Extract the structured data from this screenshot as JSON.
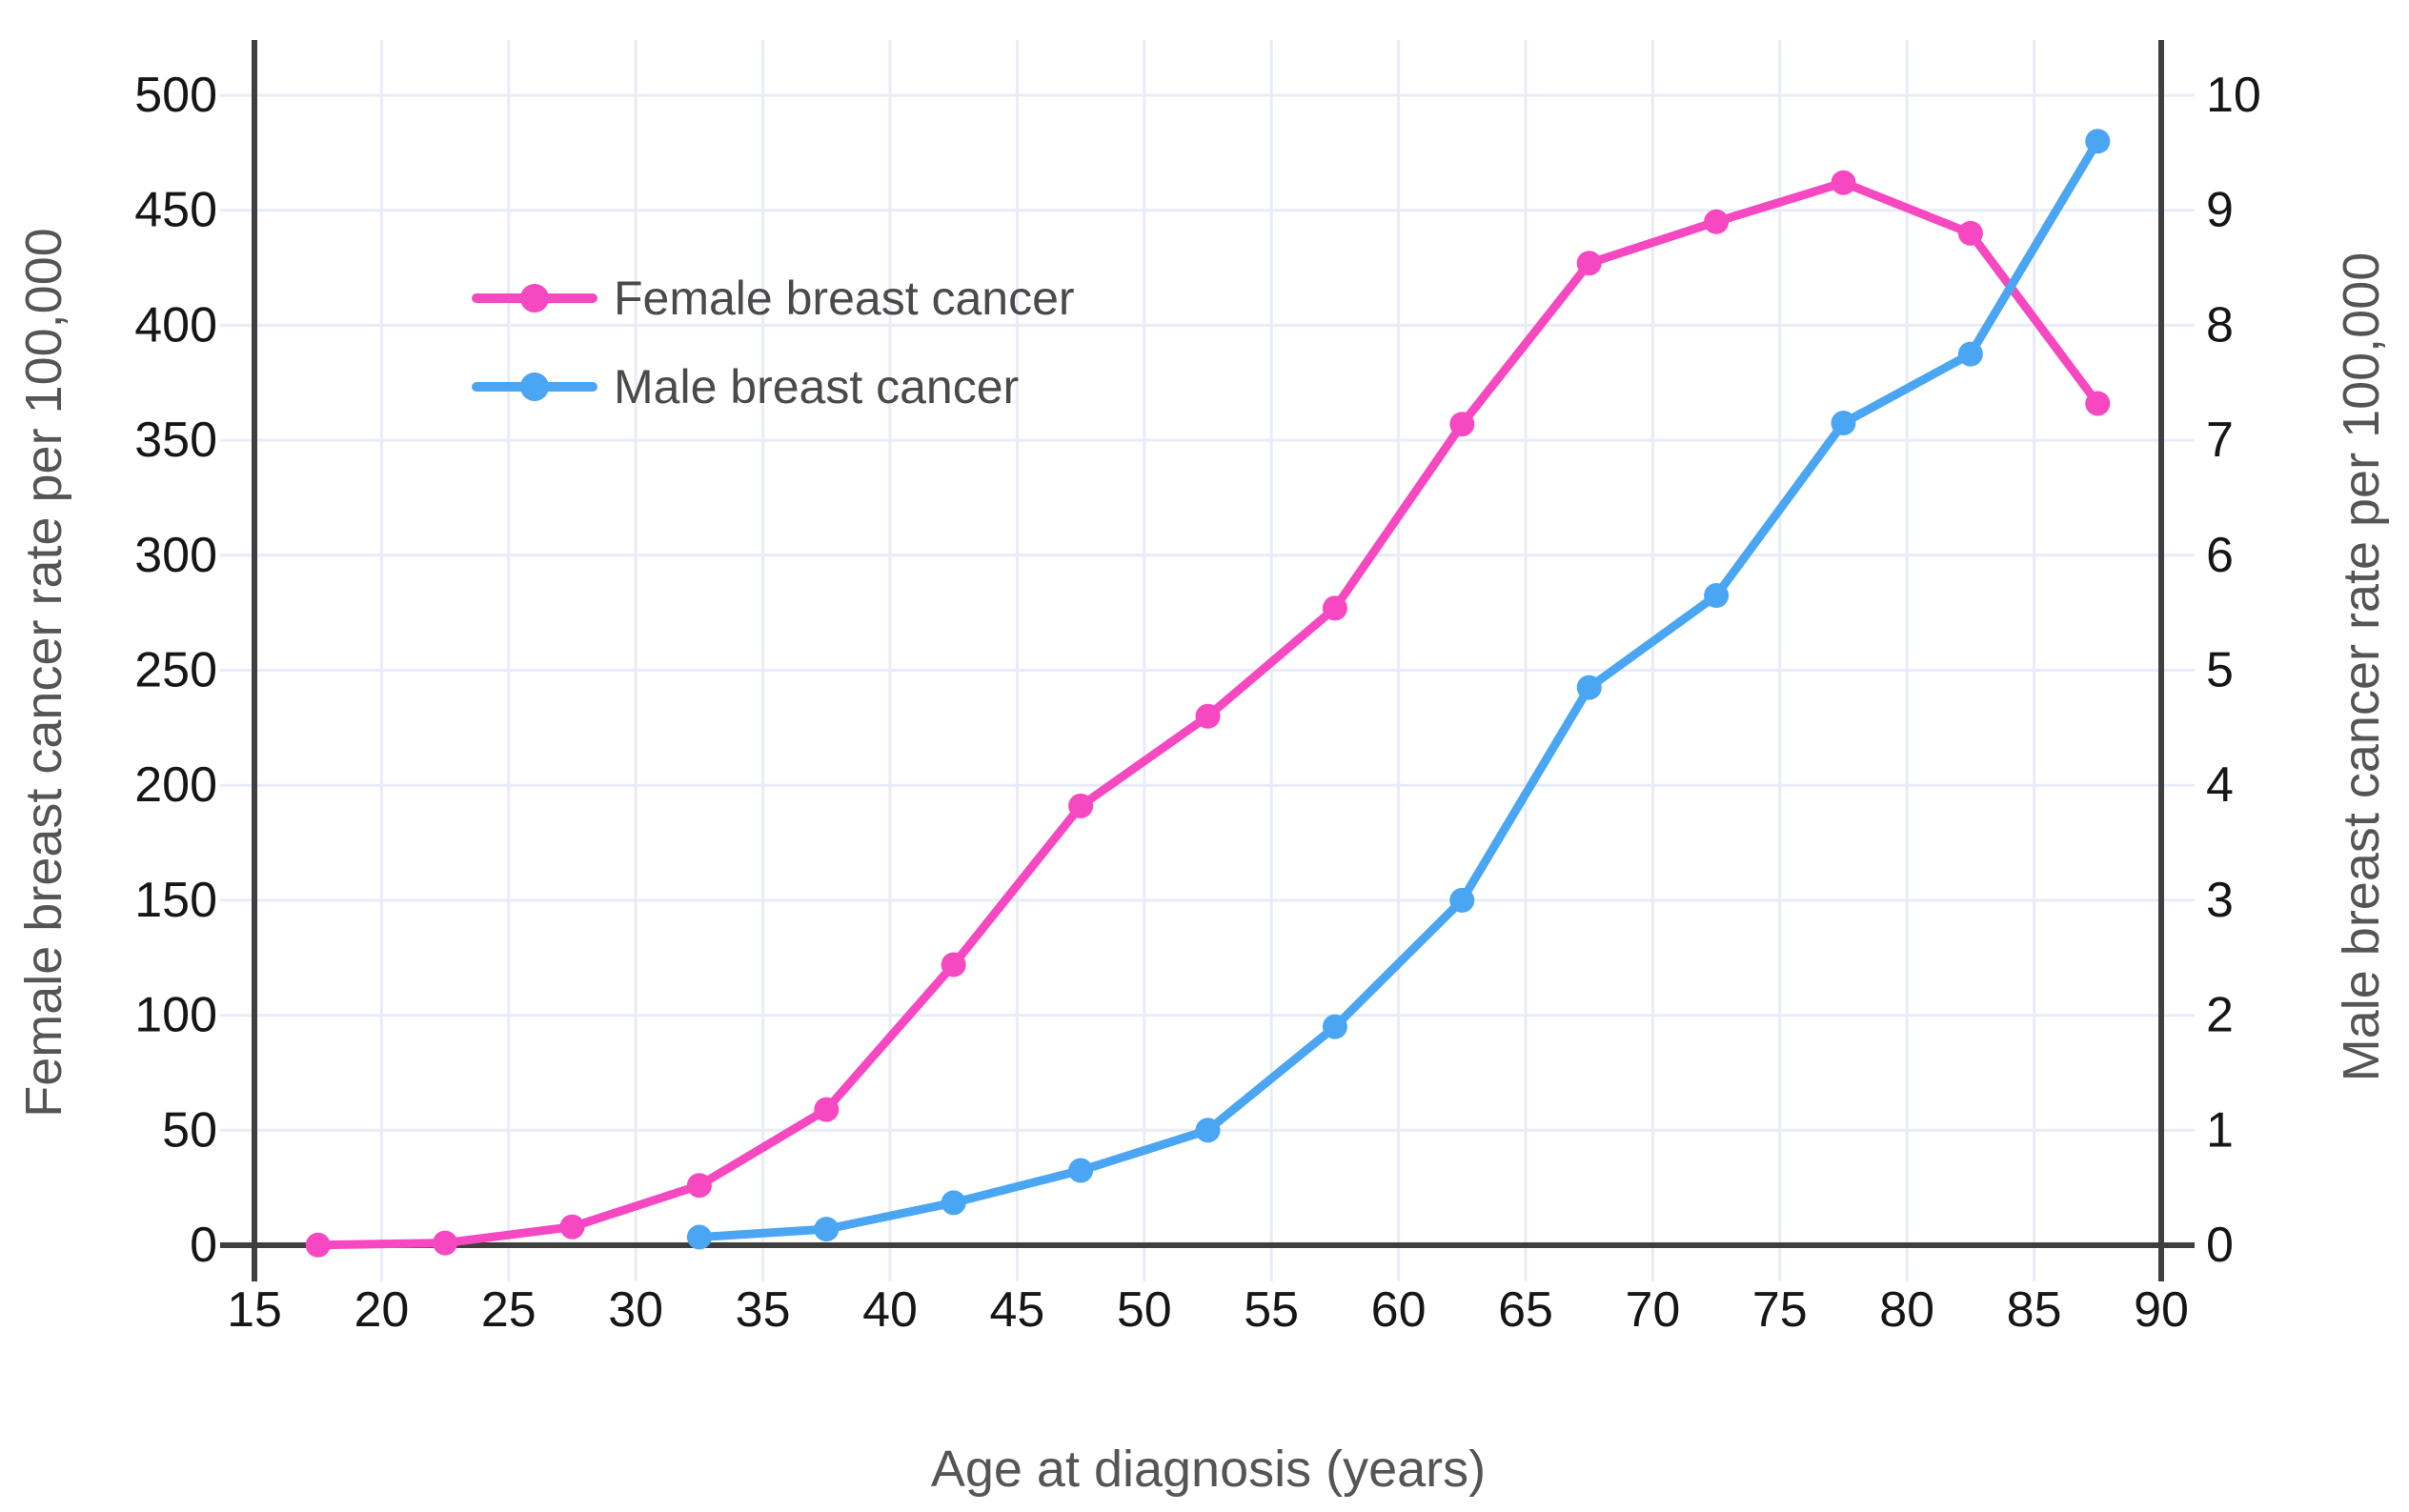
{
  "chart_data": {
    "type": "line",
    "title": "",
    "xlabel": "Age at diagnosis (years)",
    "ylabel_left": "Female breast cancer rate per 100,000",
    "ylabel_right": "Male breast cancer rate per 100,000",
    "grid": true,
    "legend_position": "upper-left-inside",
    "x_axis": {
      "min": 15,
      "max": 90,
      "ticks": [
        15,
        20,
        25,
        30,
        35,
        40,
        45,
        50,
        55,
        60,
        65,
        70,
        75,
        80,
        85,
        90
      ]
    },
    "left_axis": {
      "min": 0,
      "max": 500,
      "ticks": [
        0,
        50,
        100,
        150,
        200,
        250,
        300,
        350,
        400,
        450,
        500
      ]
    },
    "right_axis": {
      "min": 0,
      "max": 10,
      "ticks": [
        0,
        1,
        2,
        3,
        4,
        5,
        6,
        7,
        8,
        9,
        10
      ]
    },
    "series": [
      {
        "name": "Female breast cancer",
        "axis": "left",
        "color": "#f648c1",
        "x": [
          17.5,
          22.5,
          27.5,
          32.5,
          37.5,
          42.5,
          47.5,
          52.5,
          57.5,
          62.5,
          67.5,
          72.5,
          77.5,
          82.5,
          87.5
        ],
        "values": [
          0.1,
          1,
          8,
          26,
          59,
          122,
          191,
          230,
          277,
          357,
          427,
          445,
          462,
          440,
          366
        ]
      },
      {
        "name": "Male breast cancer",
        "axis": "right",
        "color": "#4aa5f3",
        "x": [
          32.5,
          37.5,
          42.5,
          47.5,
          52.5,
          57.5,
          62.5,
          67.5,
          72.5,
          77.5,
          82.5,
          87.5
        ],
        "values": [
          0.07,
          0.14,
          0.37,
          0.65,
          1.0,
          1.9,
          3.0,
          4.85,
          5.65,
          7.15,
          7.75,
          9.6
        ]
      }
    ]
  },
  "colors": {
    "background": "#ffffff",
    "gridline": "#e9ecf7",
    "axis_line": "#3f3f3f",
    "tick_label": "#161616",
    "axis_title": "#555555",
    "legend_text": "#4a4a4a"
  }
}
